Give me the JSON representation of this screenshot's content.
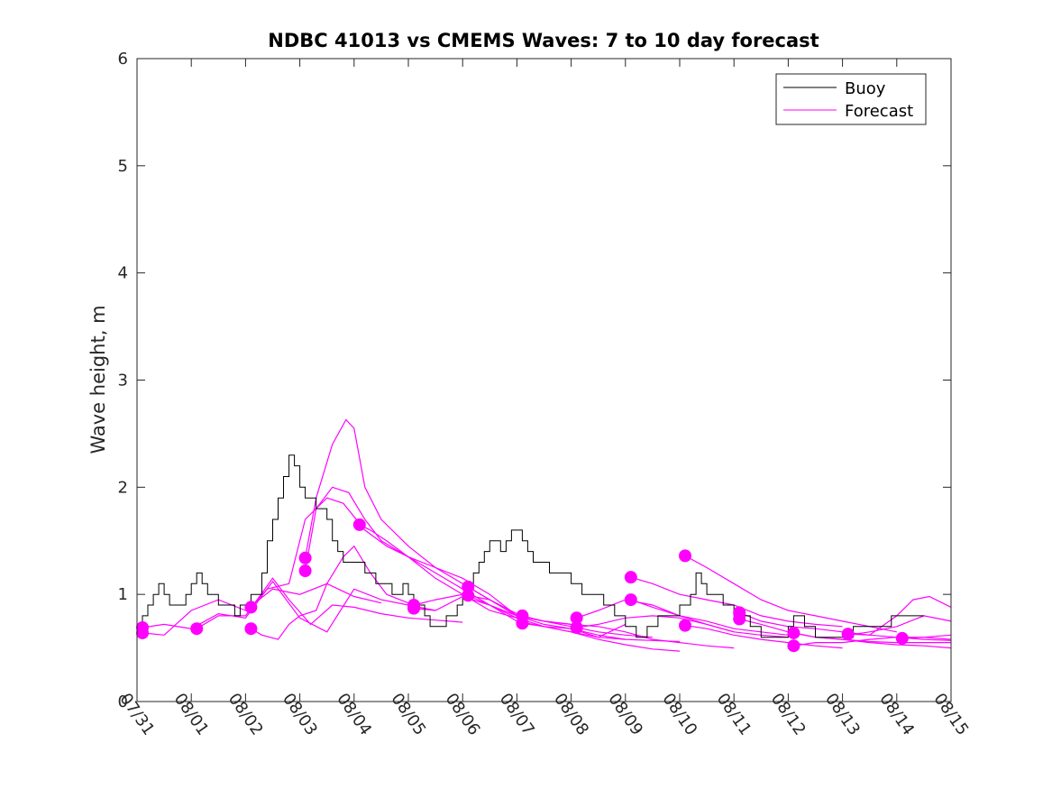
{
  "chart_data": {
    "type": "line",
    "title": "NDBC 41013 vs CMEMS Waves: 7 to 10 day forecast",
    "xlabel": "",
    "ylabel": "Wave height, m",
    "xlim": [
      0,
      15
    ],
    "ylim": [
      0,
      6
    ],
    "x_tick_labels": [
      "07/31",
      "08/01",
      "08/02",
      "08/03",
      "08/04",
      "08/05",
      "08/06",
      "08/07",
      "08/08",
      "08/09",
      "08/10",
      "08/11",
      "08/12",
      "08/13",
      "08/14",
      "08/15"
    ],
    "y_ticks": [
      "0",
      "1",
      "2",
      "3",
      "4",
      "5",
      "6"
    ],
    "grid": false,
    "legend": {
      "placement": "top-right",
      "entries": [
        {
          "label": "Buoy",
          "color": "#000000"
        },
        {
          "label": "Forecast",
          "color": "#ff00ff"
        }
      ]
    },
    "colors": {
      "buoy": "#000000",
      "forecast": "#ff00ff",
      "axis": "#262626"
    },
    "buoy": {
      "x": [
        0.0,
        0.1,
        0.2,
        0.3,
        0.4,
        0.5,
        0.6,
        0.7,
        0.8,
        0.9,
        1.0,
        1.1,
        1.2,
        1.3,
        1.4,
        1.5,
        1.6,
        1.7,
        1.8,
        1.9,
        2.0,
        2.1,
        2.2,
        2.3,
        2.4,
        2.5,
        2.6,
        2.7,
        2.8,
        2.9,
        3.0,
        3.1,
        3.2,
        3.3,
        3.4,
        3.5,
        3.6,
        3.7,
        3.8,
        3.9,
        4.0,
        4.1,
        4.2,
        4.3,
        4.4,
        4.5,
        4.6,
        4.7,
        4.8,
        4.9,
        5.0,
        5.1,
        5.2,
        5.3,
        5.4,
        5.5,
        5.6,
        5.7,
        5.8,
        5.9,
        6.0,
        6.1,
        6.2,
        6.3,
        6.4,
        6.5,
        6.6,
        6.7,
        6.8,
        6.9,
        7.0,
        7.1,
        7.2,
        7.3,
        7.4,
        7.5,
        7.6,
        7.7,
        7.8,
        7.9,
        8.0,
        8.1,
        8.2,
        8.3,
        8.4,
        8.5,
        8.6,
        8.7,
        8.8,
        8.9,
        9.0,
        9.1,
        9.2,
        9.3,
        9.4,
        9.5,
        9.6,
        9.7,
        9.8,
        9.9,
        10.0,
        10.1,
        10.2,
        10.3,
        10.4,
        10.5,
        10.6,
        10.7,
        10.8,
        10.9,
        11.0,
        11.1,
        11.2,
        11.3,
        11.4,
        11.5,
        11.6,
        11.7,
        11.8,
        11.9,
        12.0,
        12.1,
        12.2,
        12.3,
        12.4,
        12.5,
        12.6,
        12.7,
        12.8,
        12.9,
        13.0,
        13.1,
        13.2,
        13.3,
        13.4,
        13.5,
        13.6,
        13.7,
        13.8,
        13.9,
        14.0,
        14.1,
        14.2,
        14.3,
        14.4,
        14.5
      ],
      "y": [
        0.7,
        0.8,
        0.9,
        1.0,
        1.1,
        1.0,
        0.9,
        0.9,
        0.9,
        1.0,
        1.1,
        1.2,
        1.1,
        1.0,
        1.0,
        0.9,
        0.9,
        0.9,
        0.8,
        0.9,
        0.9,
        1.0,
        1.0,
        1.2,
        1.5,
        1.7,
        1.9,
        2.1,
        2.3,
        2.2,
        2.0,
        1.9,
        1.9,
        1.8,
        1.8,
        1.7,
        1.5,
        1.4,
        1.3,
        1.3,
        1.3,
        1.3,
        1.2,
        1.2,
        1.1,
        1.1,
        1.1,
        1.0,
        1.0,
        1.1,
        1.0,
        0.9,
        0.9,
        0.8,
        0.7,
        0.7,
        0.7,
        0.8,
        0.8,
        0.9,
        1.0,
        1.1,
        1.2,
        1.3,
        1.4,
        1.5,
        1.5,
        1.4,
        1.5,
        1.6,
        1.6,
        1.5,
        1.4,
        1.3,
        1.3,
        1.3,
        1.2,
        1.2,
        1.2,
        1.2,
        1.1,
        1.1,
        1.0,
        1.0,
        1.0,
        1.0,
        0.9,
        0.9,
        0.8,
        0.8,
        0.7,
        0.7,
        0.6,
        0.6,
        0.7,
        0.7,
        0.8,
        0.8,
        0.8,
        0.8,
        0.9,
        0.9,
        1.0,
        1.2,
        1.1,
        1.0,
        1.0,
        1.0,
        0.9,
        0.9,
        0.8,
        0.8,
        0.8,
        0.7,
        0.7,
        0.6,
        0.6,
        0.6,
        0.6,
        0.6,
        0.7,
        0.8,
        0.8,
        0.7,
        0.7,
        0.6,
        0.6,
        0.6,
        0.6,
        0.6,
        0.6,
        0.6,
        0.7,
        0.7,
        0.7,
        0.7,
        0.7,
        0.7,
        0.7,
        0.8,
        0.8,
        0.8,
        0.8,
        0.8,
        0.8,
        0.8
      ]
    },
    "forecast_series": [
      {
        "x": [
          0.1,
          0.5,
          1.0,
          1.5,
          2.0,
          2.5,
          3.0,
          3.5,
          4.0,
          4.5
        ],
        "y": [
          0.64,
          0.62,
          0.85,
          0.95,
          0.85,
          1.05,
          1.0,
          1.1,
          0.98,
          0.92
        ]
      },
      {
        "x": [
          0.1,
          0.5,
          1.0,
          1.5,
          2.0,
          2.5,
          3.0,
          3.5,
          4.0,
          4.5,
          5.0,
          5.5
        ],
        "y": [
          0.69,
          0.72,
          0.68,
          0.82,
          0.78,
          1.12,
          0.78,
          0.65,
          1.05,
          0.95,
          0.9,
          0.85
        ]
      },
      {
        "x": [
          1.1,
          1.5,
          2.0,
          2.5,
          2.8,
          3.2,
          3.6,
          4.0,
          4.5,
          5.0,
          5.5,
          6.0
        ],
        "y": [
          0.68,
          0.8,
          0.8,
          1.15,
          0.95,
          0.72,
          0.9,
          0.88,
          0.82,
          0.78,
          0.76,
          0.74
        ]
      },
      {
        "x": [
          2.1,
          2.4,
          2.8,
          3.1,
          3.5,
          3.8,
          4.2,
          4.6,
          5.0,
          5.5,
          6.0,
          6.5,
          7.0
        ],
        "y": [
          0.88,
          1.05,
          1.1,
          1.7,
          1.9,
          1.85,
          1.6,
          1.45,
          1.35,
          1.25,
          1.15,
          1.0,
          0.8
        ]
      },
      {
        "x": [
          2.1,
          2.3,
          2.6,
          2.8,
          3.0,
          3.3,
          3.5,
          3.8,
          4.0,
          4.3,
          4.6,
          5.0
        ],
        "y": [
          0.68,
          0.62,
          0.58,
          0.72,
          0.8,
          0.85,
          1.1,
          1.35,
          1.45,
          1.2,
          1.0,
          0.92
        ]
      },
      {
        "x": [
          3.1,
          3.3,
          3.6,
          3.85,
          4.0,
          4.2,
          4.5,
          5.0,
          5.5,
          6.0,
          6.5,
          7.0
        ],
        "y": [
          1.34,
          1.9,
          2.4,
          2.63,
          2.55,
          2.0,
          1.7,
          1.45,
          1.25,
          1.1,
          0.95,
          0.82
        ]
      },
      {
        "x": [
          3.1,
          3.3,
          3.6,
          3.9,
          4.2,
          4.5,
          5.0,
          5.5,
          6.0,
          6.5,
          7.0
        ],
        "y": [
          1.22,
          1.8,
          2.0,
          1.95,
          1.7,
          1.5,
          1.35,
          1.15,
          1.0,
          0.85,
          0.78
        ]
      },
      {
        "x": [
          4.1,
          4.3,
          4.6,
          5.0,
          5.5,
          6.0,
          6.5,
          7.0,
          7.5,
          8.0
        ],
        "y": [
          1.65,
          1.6,
          1.5,
          1.35,
          1.2,
          1.05,
          0.9,
          0.8,
          0.75,
          0.72
        ]
      },
      {
        "x": [
          5.1,
          5.5,
          6.0,
          6.5,
          7.0,
          7.5,
          8.0,
          8.5,
          9.0,
          9.5
        ],
        "y": [
          0.9,
          0.95,
          1.0,
          0.95,
          0.8,
          0.75,
          0.7,
          0.65,
          0.62,
          0.6
        ]
      },
      {
        "x": [
          5.1,
          5.5,
          6.0,
          6.5,
          7.0,
          7.5,
          8.0,
          8.5,
          9.0
        ],
        "y": [
          0.87,
          0.85,
          0.98,
          0.9,
          0.78,
          0.7,
          0.65,
          0.6,
          0.58
        ]
      },
      {
        "x": [
          6.1,
          6.5,
          7.0,
          7.5,
          8.0,
          8.5,
          9.0,
          9.5,
          10.0
        ],
        "y": [
          1.07,
          0.95,
          0.8,
          0.72,
          0.68,
          0.62,
          0.58,
          0.57,
          0.56
        ]
      },
      {
        "x": [
          6.1,
          6.5,
          7.0,
          7.5,
          8.0,
          8.5,
          9.0
        ],
        "y": [
          0.99,
          0.9,
          0.75,
          0.7,
          0.68,
          0.6,
          0.72
        ]
      },
      {
        "x": [
          7.1,
          7.5,
          8.0,
          8.5,
          9.0,
          9.5,
          10.0,
          10.5,
          11.0
        ],
        "y": [
          0.8,
          0.75,
          0.72,
          0.7,
          0.65,
          0.58,
          0.55,
          0.52,
          0.5
        ]
      },
      {
        "x": [
          7.1,
          7.5,
          8.0,
          8.5,
          9.0,
          9.5,
          10.0
        ],
        "y": [
          0.73,
          0.7,
          0.65,
          0.58,
          0.53,
          0.49,
          0.47
        ]
      },
      {
        "x": [
          8.1,
          8.5,
          9.0,
          9.5,
          10.0,
          10.5,
          11.0,
          11.5,
          12.0
        ],
        "y": [
          0.78,
          0.85,
          0.95,
          0.9,
          0.8,
          0.75,
          0.68,
          0.65,
          0.62
        ]
      },
      {
        "x": [
          8.1,
          8.5,
          9.0,
          9.5,
          10.0,
          10.5,
          11.0
        ],
        "y": [
          0.69,
          0.72,
          0.78,
          0.8,
          0.78,
          0.72,
          0.65
        ]
      },
      {
        "x": [
          9.1,
          9.5,
          10.0,
          10.5,
          11.0,
          11.5,
          12.0,
          12.5,
          13.0
        ],
        "y": [
          1.16,
          1.1,
          1.0,
          0.95,
          0.9,
          0.8,
          0.75,
          0.72,
          0.7
        ]
      },
      {
        "x": [
          9.1,
          9.5,
          10.0,
          10.5,
          11.0,
          11.5,
          12.0
        ],
        "y": [
          0.95,
          0.88,
          0.8,
          0.72,
          0.65,
          0.62,
          0.6
        ]
      },
      {
        "x": [
          10.1,
          10.5,
          11.0,
          11.5,
          12.0,
          12.5,
          13.0,
          13.5,
          14.0
        ],
        "y": [
          1.36,
          1.25,
          1.1,
          0.95,
          0.85,
          0.8,
          0.75,
          0.7,
          0.65
        ]
      },
      {
        "x": [
          10.1,
          10.5,
          11.0,
          11.5,
          12.0,
          12.5,
          13.0
        ],
        "y": [
          0.71,
          0.68,
          0.62,
          0.58,
          0.55,
          0.52,
          0.5
        ]
      },
      {
        "x": [
          11.1,
          11.5,
          12.0,
          12.5,
          13.0,
          13.5,
          14.0,
          14.5,
          15.0
        ],
        "y": [
          0.83,
          0.75,
          0.7,
          0.68,
          0.65,
          0.62,
          0.6,
          0.6,
          0.58
        ]
      },
      {
        "x": [
          11.1,
          11.5,
          12.0,
          12.5,
          13.0,
          13.5,
          14.0,
          14.5,
          15.0
        ],
        "y": [
          0.77,
          0.72,
          0.65,
          0.6,
          0.58,
          0.55,
          0.53,
          0.52,
          0.5
        ]
      },
      {
        "x": [
          12.1,
          12.5,
          13.0,
          13.5,
          14.0,
          14.5,
          15.0
        ],
        "y": [
          0.64,
          0.6,
          0.58,
          0.56,
          0.55,
          0.55,
          0.55
        ]
      },
      {
        "x": [
          12.1,
          12.5,
          13.0,
          13.5,
          14.0,
          14.5,
          15.0
        ],
        "y": [
          0.52,
          0.55,
          0.55,
          0.58,
          0.6,
          0.58,
          0.57
        ]
      },
      {
        "x": [
          13.1,
          13.5,
          14.0,
          14.3,
          14.6,
          15.0
        ],
        "y": [
          0.63,
          0.62,
          0.8,
          0.95,
          0.98,
          0.88
        ]
      },
      {
        "x": [
          13.1,
          13.5,
          14.0,
          14.5,
          15.0
        ],
        "y": [
          0.62,
          0.65,
          0.7,
          0.8,
          0.75
        ]
      },
      {
        "x": [
          14.1,
          14.5,
          15.0
        ],
        "y": [
          0.59,
          0.6,
          0.62
        ]
      }
    ],
    "forecast_markers": {
      "x": [
        0.1,
        0.1,
        1.1,
        2.1,
        2.1,
        3.1,
        3.1,
        4.1,
        5.1,
        5.1,
        6.1,
        6.1,
        7.1,
        7.1,
        8.1,
        8.1,
        9.1,
        9.1,
        10.1,
        10.1,
        11.1,
        11.1,
        12.1,
        12.1,
        13.1,
        14.1
      ],
      "y": [
        0.64,
        0.69,
        0.68,
        0.88,
        0.68,
        1.34,
        1.22,
        1.65,
        0.9,
        0.87,
        1.07,
        0.99,
        0.8,
        0.73,
        0.78,
        0.69,
        1.16,
        0.95,
        1.36,
        0.71,
        0.83,
        0.77,
        0.64,
        0.52,
        0.63,
        0.59
      ]
    }
  }
}
